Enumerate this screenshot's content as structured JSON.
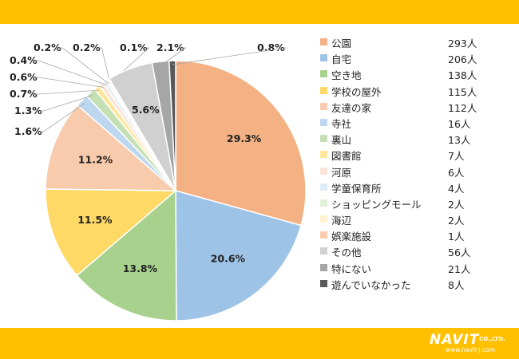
{
  "chart_data": {
    "type": "pie",
    "start_angle": "12 o'clock, clockwise",
    "legend_position": "right",
    "slices": [
      {
        "name": "公園",
        "count": "293人",
        "percent": 29.3,
        "label": "29.3%",
        "color": "#F4B183"
      },
      {
        "name": "自宅",
        "count": "206人",
        "percent": 20.6,
        "label": "20.6%",
        "color": "#9DC3E6"
      },
      {
        "name": "空き地",
        "count": "138人",
        "percent": 13.8,
        "label": "13.8%",
        "color": "#A9D18E"
      },
      {
        "name": "学校の屋外",
        "count": "115人",
        "percent": 11.5,
        "label": "11.5%",
        "color": "#FFD966"
      },
      {
        "name": "友達の家",
        "count": "112人",
        "percent": 11.2,
        "label": "11.2%",
        "color": "#F8CBAD"
      },
      {
        "name": "寺社",
        "count": "16人",
        "percent": 1.6,
        "label": "1.6%",
        "color": "#BDD7EE"
      },
      {
        "name": "裏山",
        "count": "13人",
        "percent": 1.3,
        "label": "1.3%",
        "color": "#C5E0B4"
      },
      {
        "name": "図書館",
        "count": "7人",
        "percent": 0.7,
        "label": "0.7%",
        "color": "#FFE699"
      },
      {
        "name": "河原",
        "count": "6人",
        "percent": 0.6,
        "label": "0.6%",
        "color": "#FBE5D6"
      },
      {
        "name": "学童保育所",
        "count": "4人",
        "percent": 0.4,
        "label": "0.4%",
        "color": "#DEEBF7"
      },
      {
        "name": "ショッピングモール",
        "count": "2人",
        "percent": 0.2,
        "label": "0.2%",
        "color": "#E2F0D9"
      },
      {
        "name": "海辺",
        "count": "2人",
        "percent": 0.2,
        "label": "0.2%",
        "color": "#FFF2CC"
      },
      {
        "name": "娯楽施設",
        "count": "1人",
        "percent": 0.1,
        "label": "0.1%",
        "color": "#F8CBAD"
      },
      {
        "name": "その他",
        "count": "56人",
        "percent": 5.6,
        "label": "5.6%",
        "color": "#D0D0D0"
      },
      {
        "name": "特にない",
        "count": "21人",
        "percent": 2.1,
        "label": "2.1%",
        "color": "#A6A6A6"
      },
      {
        "name": "遊んでいなかった",
        "count": "8人",
        "percent": 0.8,
        "label": "0.8%",
        "color": "#595959"
      }
    ]
  },
  "branding": {
    "logo_text": "NAVIT",
    "logo_suffix": "CO.,LTD.",
    "url": "www.navit-j.com",
    "bar_color": "#FFC000"
  }
}
